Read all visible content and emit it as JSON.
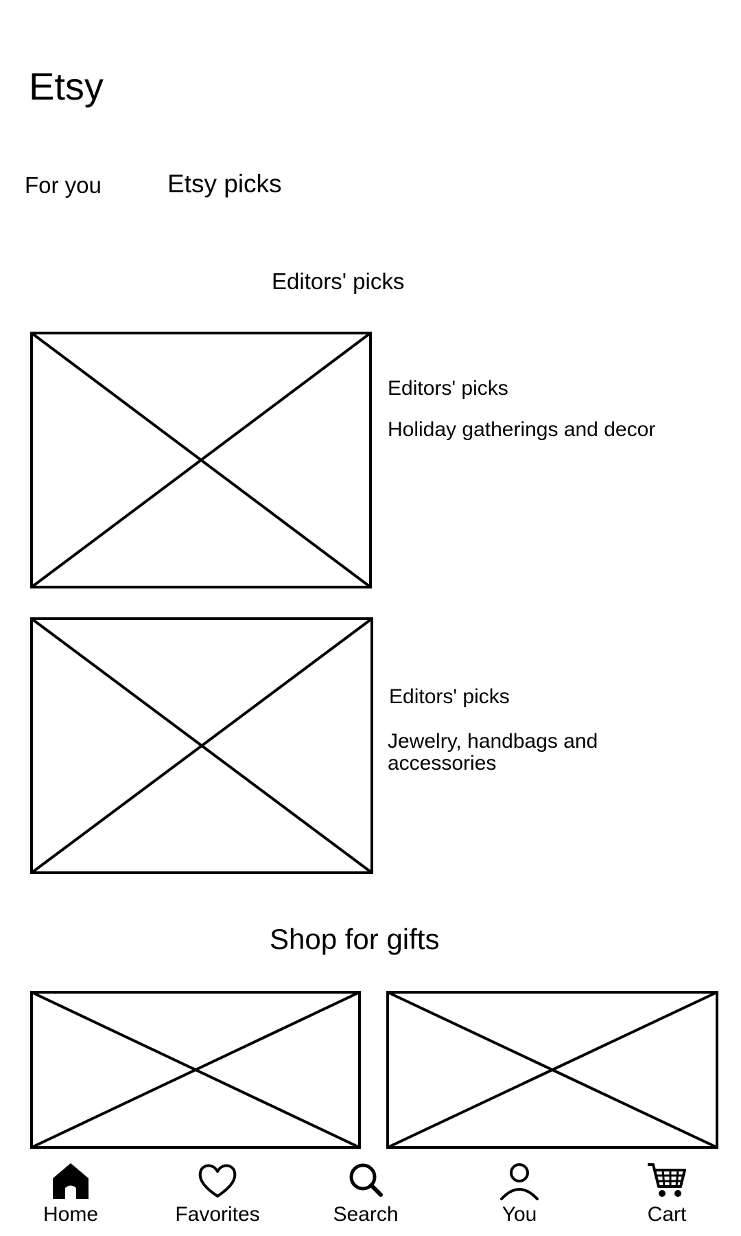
{
  "app": {
    "title": "Etsy"
  },
  "tabs": [
    {
      "label": "For you"
    },
    {
      "label": "Etsy picks"
    }
  ],
  "editors_picks": {
    "heading": "Editors' picks",
    "cards": [
      {
        "label": "Editors' picks",
        "title": "Holiday gatherings and decor",
        "image": "image-placeholder"
      },
      {
        "label": "Editors' picks",
        "title": "Jewelry, handbags and accessories",
        "image": "image-placeholder"
      }
    ]
  },
  "gifts": {
    "heading": "Shop for gifts",
    "items": [
      {
        "image": "image-placeholder"
      },
      {
        "image": "image-placeholder"
      }
    ]
  },
  "bottom_nav": [
    {
      "label": "Home",
      "icon": "home-icon"
    },
    {
      "label": "Favorites",
      "icon": "heart-icon"
    },
    {
      "label": "Search",
      "icon": "search-icon"
    },
    {
      "label": "You",
      "icon": "user-icon"
    },
    {
      "label": "Cart",
      "icon": "cart-icon"
    }
  ]
}
